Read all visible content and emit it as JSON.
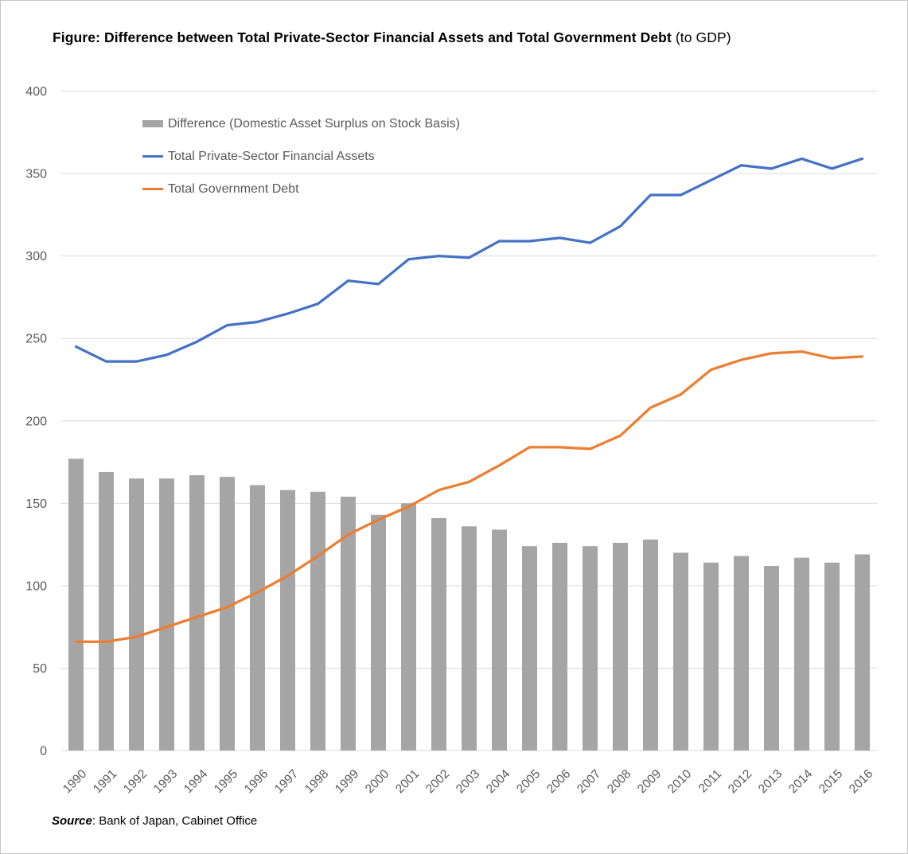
{
  "figure": {
    "title_main": "Figure: Difference between Total Private-Sector Financial Assets and Total Government Debt",
    "title_suffix": " (to GDP)",
    "source_label": "Source",
    "source_rest": ": Bank of Japan, Cabinet Office"
  },
  "chart_data": {
    "type": "bar",
    "subtype": "bar-line-combo",
    "title": "Figure: Difference between Total Private-Sector Financial Assets and Total Government Debt (to GDP)",
    "categories": [
      "1990",
      "1991",
      "1992",
      "1993",
      "1994",
      "1995",
      "1996",
      "1997",
      "1998",
      "1999",
      "2000",
      "2001",
      "2002",
      "2003",
      "2004",
      "2005",
      "2006",
      "2007",
      "2008",
      "2009",
      "2010",
      "2011",
      "2012",
      "2013",
      "2014",
      "2015",
      "2016"
    ],
    "series": [
      {
        "name": "Difference (Domestic Asset Surplus on Stock Basis)",
        "type": "bar",
        "color": "#A5A5A5",
        "values": [
          177,
          169,
          165,
          165,
          167,
          166,
          161,
          158,
          157,
          154,
          143,
          150,
          141,
          136,
          134,
          124,
          126,
          124,
          126,
          128,
          120,
          114,
          118,
          112,
          117,
          114,
          119
        ]
      },
      {
        "name": "Total Private-Sector Financial Assets",
        "type": "line",
        "color": "#4472C4",
        "values": [
          245,
          236,
          236,
          240,
          248,
          258,
          260,
          265,
          271,
          285,
          283,
          298,
          300,
          299,
          309,
          309,
          311,
          308,
          318,
          337,
          337,
          346,
          355,
          353,
          359,
          353,
          359
        ]
      },
      {
        "name": "Total Government Debt",
        "type": "line",
        "color": "#ED7D31",
        "values": [
          66,
          66,
          69,
          75,
          81,
          87,
          96,
          106,
          118,
          131,
          140,
          148,
          158,
          163,
          173,
          184,
          184,
          183,
          191,
          208,
          216,
          231,
          237,
          241,
          242,
          238,
          239
        ]
      }
    ],
    "ylim": [
      0,
      400
    ],
    "yticks": [
      0,
      50,
      100,
      150,
      200,
      250,
      300,
      350,
      400
    ],
    "grid": true,
    "gridline_color": "#D9D9D9",
    "tick_label_color": "#595959",
    "legend_position": "inside-top-left"
  }
}
